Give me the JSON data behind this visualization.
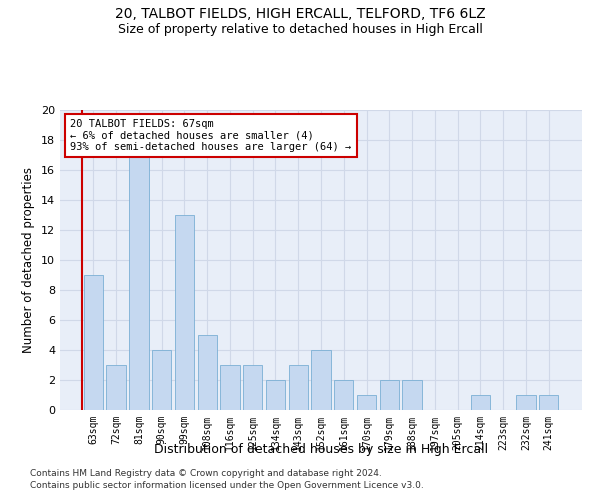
{
  "title1": "20, TALBOT FIELDS, HIGH ERCALL, TELFORD, TF6 6LZ",
  "title2": "Size of property relative to detached houses in High Ercall",
  "xlabel": "Distribution of detached houses by size in High Ercall",
  "ylabel": "Number of detached properties",
  "categories": [
    "63sqm",
    "72sqm",
    "81sqm",
    "90sqm",
    "99sqm",
    "108sqm",
    "116sqm",
    "125sqm",
    "134sqm",
    "143sqm",
    "152sqm",
    "161sqm",
    "170sqm",
    "179sqm",
    "188sqm",
    "197sqm",
    "205sqm",
    "214sqm",
    "223sqm",
    "232sqm",
    "241sqm"
  ],
  "values": [
    9,
    3,
    17,
    4,
    13,
    5,
    3,
    3,
    2,
    3,
    4,
    2,
    1,
    2,
    2,
    0,
    0,
    1,
    0,
    1,
    1
  ],
  "bar_color": "#c5d8f0",
  "bar_edge_color": "#7bafd4",
  "annotation_box_text": "20 TALBOT FIELDS: 67sqm\n← 6% of detached houses are smaller (4)\n93% of semi-detached houses are larger (64) →",
  "annotation_box_color": "#ffffff",
  "annotation_box_edgecolor": "#cc0000",
  "vline_color": "#cc0000",
  "ylim": [
    0,
    20
  ],
  "yticks": [
    0,
    2,
    4,
    6,
    8,
    10,
    12,
    14,
    16,
    18,
    20
  ],
  "footer1": "Contains HM Land Registry data © Crown copyright and database right 2024.",
  "footer2": "Contains public sector information licensed under the Open Government Licence v3.0.",
  "grid_color": "#d0d8e8",
  "bg_color": "#e8eef8"
}
